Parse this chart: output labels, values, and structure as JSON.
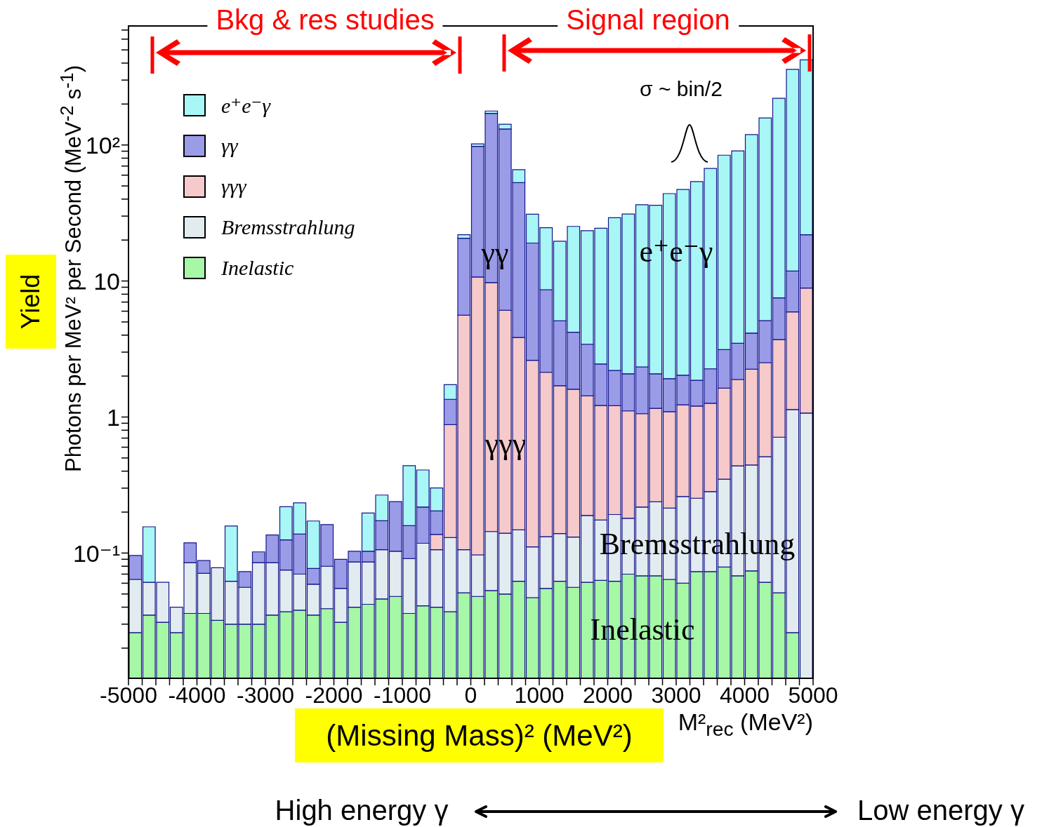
{
  "chart_data": {
    "type": "bar",
    "stacked": true,
    "log": true,
    "legend": "top left",
    "xlabel": "M²$_{rec}$ (MeV²)",
    "ylabel": "Photons per MeV² per Second (MeV$^{-2}$ s$^{-1}$)",
    "xlim": [
      -5000,
      5000
    ],
    "ylim": [
      0.012,
      750
    ],
    "x": [
      -4900,
      -4700,
      -4500,
      -4300,
      -4100,
      -3900,
      -3700,
      -3500,
      -3300,
      -3100,
      -2900,
      -2700,
      -2500,
      -2300,
      -2100,
      -1900,
      -1700,
      -1500,
      -1300,
      -1100,
      -900,
      -700,
      -500,
      -300,
      -100,
      100,
      300,
      500,
      700,
      900,
      1100,
      1300,
      1500,
      1700,
      1900,
      2100,
      2300,
      2500,
      2700,
      2900,
      3100,
      3300,
      3500,
      3700,
      3900,
      4100,
      4300,
      4500,
      4700,
      4900
    ],
    "xticks": [
      -5000,
      {
        "value": -4800,
        "label": null
      },
      {
        "value": -4600,
        "label": null
      },
      {
        "value": -4400,
        "label": null
      },
      {
        "value": -4200,
        "label": null
      },
      -4000,
      {
        "value": -3800,
        "label": null
      },
      {
        "value": -3600,
        "label": null
      },
      {
        "value": -3400,
        "label": null
      },
      {
        "value": -3200,
        "label": null
      },
      -3000,
      {
        "value": -2800,
        "label": null
      },
      {
        "value": -2600,
        "label": null
      },
      {
        "value": -2400,
        "label": null
      },
      {
        "value": -2200,
        "label": null
      },
      -2000,
      {
        "value": -1800,
        "label": null
      },
      {
        "value": -1600,
        "label": null
      },
      {
        "value": -1400,
        "label": null
      },
      {
        "value": -1200,
        "label": null
      },
      -1000,
      {
        "value": -800,
        "label": null
      },
      {
        "value": -600,
        "label": null
      },
      {
        "value": -400,
        "label": null
      },
      {
        "value": -200,
        "label": null
      },
      0,
      {
        "value": 200,
        "label": null
      },
      {
        "value": 400,
        "label": null
      },
      {
        "value": 600,
        "label": null
      },
      {
        "value": 800,
        "label": null
      },
      1000,
      {
        "value": 1200,
        "label": null
      },
      {
        "value": 1400,
        "label": null
      },
      {
        "value": 1600,
        "label": null
      },
      {
        "value": 1800,
        "label": null
      },
      2000,
      {
        "value": 2200,
        "label": null
      },
      {
        "value": 2400,
        "label": null
      },
      {
        "value": 2600,
        "label": null
      },
      {
        "value": 2800,
        "label": null
      },
      3000,
      {
        "value": 3200,
        "label": null
      },
      {
        "value": 3400,
        "label": null
      },
      {
        "value": 3600,
        "label": null
      },
      {
        "value": 3800,
        "label": null
      },
      4000,
      {
        "value": 4200,
        "label": null
      },
      {
        "value": 4400,
        "label": null
      },
      {
        "value": 4600,
        "label": null
      },
      {
        "value": 4800,
        "label": null
      },
      5000
    ],
    "yticks": [
      {
        "value": 0.02,
        "label": null
      },
      {
        "value": 0.03,
        "label": null
      },
      {
        "value": 0.04,
        "label": null
      },
      {
        "value": 0.05,
        "label": null
      },
      {
        "value": 0.06,
        "label": null
      },
      {
        "value": 0.07,
        "label": null
      },
      {
        "value": 0.08,
        "label": null
      },
      {
        "value": 0.09,
        "label": null
      },
      {
        "value": 0.1,
        "label": "10⁻¹"
      },
      {
        "value": 0.2,
        "label": null
      },
      {
        "value": 0.3,
        "label": null
      },
      {
        "value": 0.4,
        "label": null
      },
      {
        "value": 0.5,
        "label": null
      },
      {
        "value": 0.6,
        "label": null
      },
      {
        "value": 0.7,
        "label": null
      },
      {
        "value": 0.8,
        "label": null
      },
      {
        "value": 0.9,
        "label": null
      },
      1,
      {
        "value": 2,
        "label": null
      },
      {
        "value": 3,
        "label": null
      },
      {
        "value": 4,
        "label": null
      },
      {
        "value": 5,
        "label": null
      },
      {
        "value": 6,
        "label": null
      },
      {
        "value": 7,
        "label": null
      },
      {
        "value": 8,
        "label": null
      },
      {
        "value": 9,
        "label": null
      },
      10,
      {
        "value": 20,
        "label": null
      },
      {
        "value": 30,
        "label": null
      },
      {
        "value": 40,
        "label": null
      },
      {
        "value": 50,
        "label": null
      },
      {
        "value": 60,
        "label": null
      },
      {
        "value": 70,
        "label": null
      },
      {
        "value": 80,
        "label": null
      },
      {
        "value": 90,
        "label": null
      },
      {
        "value": 100,
        "label": "10²"
      },
      {
        "value": 200,
        "label": null
      },
      {
        "value": 300,
        "label": null
      },
      {
        "value": 400,
        "label": null
      },
      {
        "value": 500,
        "label": null
      },
      {
        "value": 600,
        "label": null
      },
      {
        "value": 700,
        "label": null
      }
    ],
    "series": [
      {
        "name": "Inelastic",
        "color": "#a6f7a6",
        "values": [
          0.026,
          0.035,
          0.031,
          0.026,
          0.036,
          0.036,
          0.032,
          0.03,
          0.03,
          0.03,
          0.035,
          0.037,
          0.038,
          0.035,
          0.039,
          0.031,
          0.04,
          0.042,
          0.046,
          0.048,
          0.036,
          0.041,
          0.04,
          0.037,
          0.051,
          0.048,
          0.053,
          0.05,
          0.062,
          0.047,
          0.055,
          0.062,
          0.056,
          0.061,
          0.063,
          0.062,
          0.07,
          0.068,
          0.068,
          0.064,
          0.06,
          0.073,
          0.073,
          0.079,
          0.068,
          0.074,
          0.061,
          0.051,
          0.026,
          null
        ]
      },
      {
        "name": "Bremsstrahlung",
        "color": "#e2ecf0",
        "values": [
          0.038,
          0.026,
          0.03,
          0.014,
          0.049,
          0.035,
          0.046,
          0.032,
          0.026,
          0.055,
          0.05,
          0.038,
          0.032,
          0.024,
          0.041,
          0.024,
          0.046,
          0.044,
          0.06,
          0.055,
          0.055,
          0.077,
          0.066,
          0.093,
          0.055,
          0.049,
          0.091,
          0.09,
          0.086,
          0.064,
          0.077,
          0.077,
          0.075,
          0.128,
          0.112,
          0.13,
          0.11,
          0.15,
          0.17,
          0.15,
          0.2,
          0.18,
          0.21,
          0.27,
          0.37,
          0.37,
          0.45,
          0.66,
          1.11,
          1.07
        ]
      },
      {
        "name": "γγγ",
        "color": "#f6caca",
        "values": [
          null,
          null,
          null,
          null,
          null,
          null,
          null,
          null,
          null,
          null,
          null,
          null,
          null,
          null,
          null,
          null,
          null,
          null,
          null,
          null,
          null,
          null,
          0.031,
          0.75,
          5.5,
          10.6,
          9.6,
          5.95,
          3.7,
          2.5,
          2.0,
          1.56,
          1.47,
          1.24,
          1.04,
          1.02,
          0.93,
          0.84,
          0.92,
          0.88,
          0.97,
          0.95,
          0.98,
          1.28,
          1.45,
          1.8,
          2.0,
          3.0,
          4.8,
          7.8
        ]
      },
      {
        "name": "γγ",
        "color": "#9a9ce8",
        "values": [
          0.032,
          null,
          null,
          null,
          0.034,
          0.017,
          null,
          null,
          0.017,
          0.017,
          0.051,
          0.05,
          0.068,
          0.018,
          0.082,
          0.035,
          0.017,
          0.017,
          0.067,
          0.136,
          0.068,
          0.1,
          0.067,
          0.47,
          15,
          87,
          161,
          125,
          49,
          16.4,
          6.5,
          3.4,
          2.6,
          2.0,
          1.24,
          0.99,
          0.97,
          1.28,
          0.92,
          0.82,
          0.8,
          0.66,
          1.0,
          1.5,
          1.6,
          1.9,
          2.6,
          3.8,
          5.9,
          13
        ]
      },
      {
        "name": "e⁺e⁻γ",
        "color": "#a8f6f6",
        "values": [
          null,
          0.095,
          null,
          null,
          null,
          null,
          null,
          0.096,
          null,
          null,
          null,
          0.094,
          0.096,
          0.095,
          null,
          null,
          null,
          0.094,
          0.094,
          null,
          0.28,
          0.19,
          0.097,
          0.38,
          1.3,
          4.2,
          7,
          11,
          13,
          12,
          16,
          14.5,
          21,
          20,
          22,
          27,
          29,
          34,
          34,
          42,
          45,
          52,
          65,
          81,
          87,
          115,
          153,
          213,
          348,
          400
        ]
      }
    ],
    "annotations": [
      "Bkg & res studies",
      "Signal region",
      "σ ~ bin/2",
      "Yield",
      "(Missing Mass)² (MeV²)",
      "High energy γ",
      "Low energy γ",
      "γγ",
      "e⁺e⁻γ",
      "γγγ",
      "Bremsstrahlung",
      "Inelastic"
    ]
  }
}
